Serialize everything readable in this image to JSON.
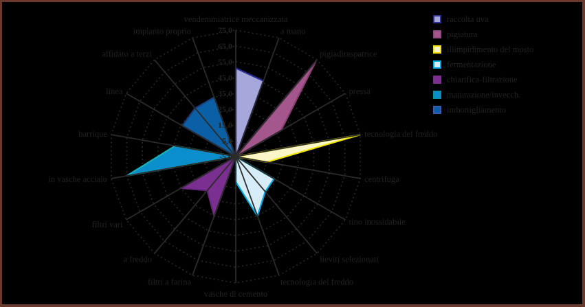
{
  "chart_data": {
    "type": "radar",
    "title": "",
    "center": [
      343,
      228
    ],
    "radius": 184,
    "range": [
      -5,
      75
    ],
    "ticks": [
      "75,0",
      "65,0",
      "55,0",
      "45,0",
      "35,0",
      "25,0",
      "15,0",
      "5,0",
      "-5,0"
    ],
    "tick_values": [
      75,
      65,
      55,
      45,
      35,
      25,
      15,
      5,
      -5
    ],
    "categories": [
      "vendemmiatrice meccanizzata",
      "a mano",
      "pigiadiraspatrice",
      "pressa",
      "tecnologia del freddo",
      "centrifuga",
      "tino inossidabile",
      "lieviti selezionati",
      "tecnologia del freddo",
      "vasche di cemento",
      "filtri a farina",
      "a freddo",
      "filtri vari",
      "in vasche acciaio",
      "barrique",
      "linea",
      "affidato a terzi",
      "impianto proprio"
    ],
    "series": [
      {
        "name": "raccolta uva",
        "fill": "#a6a8dc",
        "stroke": "#2e3192",
        "swatch": "#2e3192",
        "points": {
          "0": 51,
          "1": 46
        }
      },
      {
        "name": "pigiatura",
        "fill": "#a5578d",
        "stroke": "#8a3f78",
        "swatch": "#8e4a7e",
        "points": {
          "2": 74,
          "3": 28
        }
      },
      {
        "name": "illimpidimento del mosto",
        "fill": "#fbf6c8",
        "stroke": "#f2e600",
        "swatch": "#f2e600",
        "points": {
          "4": 75,
          "5": 15
        }
      },
      {
        "name": "fermentazione",
        "fill": "#d6ecf6",
        "stroke": "#00a8e2",
        "swatch": "#00a8e2",
        "points": {
          "6": 23,
          "7": 24,
          "8": 35,
          "9": 11
        }
      },
      {
        "name": "chiarifica-filtrazione",
        "fill": "#7b2f90",
        "stroke": "#6a2882",
        "swatch": "#7b2f90",
        "points": {
          "10": 35,
          "11": 23,
          "12": 35
        }
      },
      {
        "name": "maturazione/invecch.",
        "fill": "#0a8fcc",
        "stroke": "#1ab1b8",
        "swatch": "#0a8fa8",
        "points": {
          "13": 65,
          "14": 34
        }
      },
      {
        "name": "imbottigliamento",
        "fill": "#0b5fa5",
        "stroke": "#1c3d7a",
        "swatch": "#3a5cb0",
        "points": {
          "15": 34,
          "16": 35,
          "17": 35
        }
      }
    ],
    "legend_position": "right",
    "grid": "dotted polygons"
  },
  "frame_color": "#6b3a2e"
}
